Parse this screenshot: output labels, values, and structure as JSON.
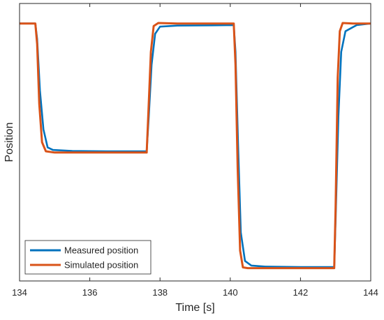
{
  "chart_data": {
    "type": "line",
    "title": "",
    "xlabel": "Time [s]",
    "ylabel": "Position",
    "xlim": [
      134,
      144
    ],
    "ylim": [
      0,
      1
    ],
    "xticks": [
      134,
      136,
      138,
      140,
      142,
      144
    ],
    "xtick_labels": [
      "134",
      "136",
      "138",
      "140",
      "142",
      "144"
    ],
    "yticks_visible": false,
    "grid": false,
    "legend_position": "bottom-left",
    "series": [
      {
        "name": "Measured position",
        "color": "#0072BD",
        "points": [
          [
            134.0,
            0.96
          ],
          [
            134.45,
            0.96
          ],
          [
            134.5,
            0.9
          ],
          [
            134.58,
            0.7
          ],
          [
            134.68,
            0.55
          ],
          [
            134.8,
            0.48
          ],
          [
            134.95,
            0.47
          ],
          [
            135.5,
            0.466
          ],
          [
            136.5,
            0.465
          ],
          [
            137.62,
            0.465
          ],
          [
            137.68,
            0.6
          ],
          [
            137.76,
            0.8
          ],
          [
            137.86,
            0.92
          ],
          [
            138.0,
            0.948
          ],
          [
            138.5,
            0.952
          ],
          [
            139.5,
            0.953
          ],
          [
            140.1,
            0.954
          ],
          [
            140.15,
            0.85
          ],
          [
            140.22,
            0.5
          ],
          [
            140.3,
            0.15
          ],
          [
            140.42,
            0.04
          ],
          [
            140.6,
            0.022
          ],
          [
            141.0,
            0.018
          ],
          [
            142.0,
            0.016
          ],
          [
            142.96,
            0.016
          ],
          [
            143.0,
            0.2
          ],
          [
            143.08,
            0.6
          ],
          [
            143.16,
            0.85
          ],
          [
            143.28,
            0.93
          ],
          [
            143.6,
            0.954
          ],
          [
            144.0,
            0.96
          ]
        ]
      },
      {
        "name": "Simulated position",
        "color": "#D95319",
        "points": [
          [
            134.0,
            0.96
          ],
          [
            134.45,
            0.96
          ],
          [
            134.5,
            0.88
          ],
          [
            134.56,
            0.65
          ],
          [
            134.64,
            0.5
          ],
          [
            134.75,
            0.465
          ],
          [
            135.0,
            0.46
          ],
          [
            136.5,
            0.46
          ],
          [
            137.62,
            0.46
          ],
          [
            137.67,
            0.62
          ],
          [
            137.74,
            0.85
          ],
          [
            137.82,
            0.95
          ],
          [
            137.95,
            0.962
          ],
          [
            138.5,
            0.96
          ],
          [
            139.5,
            0.96
          ],
          [
            140.1,
            0.96
          ],
          [
            140.15,
            0.8
          ],
          [
            140.21,
            0.4
          ],
          [
            140.28,
            0.08
          ],
          [
            140.36,
            0.015
          ],
          [
            140.5,
            0.012
          ],
          [
            142.96,
            0.012
          ],
          [
            143.0,
            0.25
          ],
          [
            143.06,
            0.75
          ],
          [
            143.12,
            0.93
          ],
          [
            143.2,
            0.962
          ],
          [
            143.5,
            0.96
          ],
          [
            144.0,
            0.96
          ]
        ]
      }
    ]
  }
}
